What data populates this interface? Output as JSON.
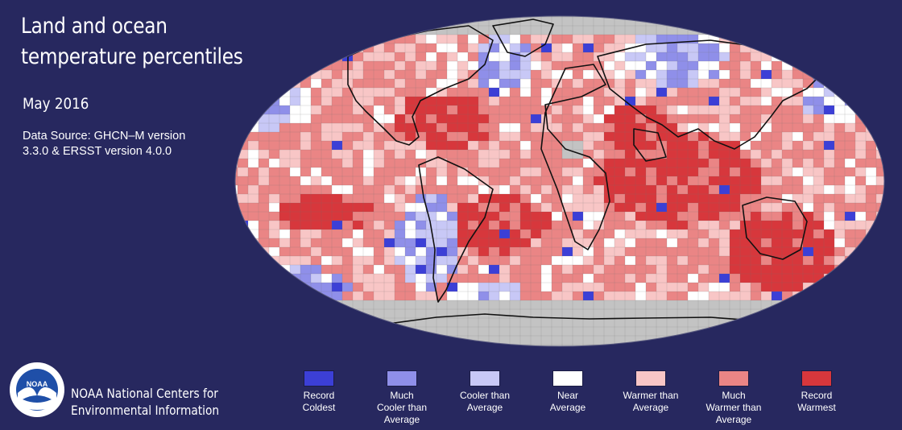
{
  "title_line1": "Land and ocean",
  "title_line2": "temperature percentiles",
  "date": "May 2016",
  "source_line1": "Data Source: GHCN–M version",
  "source_line2": "3.3.0 & ERSST version 4.0.0",
  "org_line1": "NOAA National Centers for",
  "org_line2": "Environmental Information",
  "logo_text": "NOAA",
  "colors": {
    "background": "#27285f",
    "no_data": "#c3c3c3",
    "land_outline": "#111111"
  },
  "legend": [
    {
      "lines": [
        "Record",
        "Coldest"
      ],
      "color": "#3c3fd6"
    },
    {
      "lines": [
        "Much",
        "Cooler than",
        "Average"
      ],
      "color": "#8f8fe9"
    },
    {
      "lines": [
        "Cooler than",
        "Average"
      ],
      "color": "#c8c8f6"
    },
    {
      "lines": [
        "Near",
        "Average"
      ],
      "color": "#ffffff"
    },
    {
      "lines": [
        "Warmer than",
        "Average"
      ],
      "color": "#f8c6c6"
    },
    {
      "lines": [
        "Much",
        "Warmer than",
        "Average"
      ],
      "color": "#ea8585"
    },
    {
      "lines": [
        "Record",
        "Warmest"
      ],
      "color": "#d7373c"
    }
  ]
}
